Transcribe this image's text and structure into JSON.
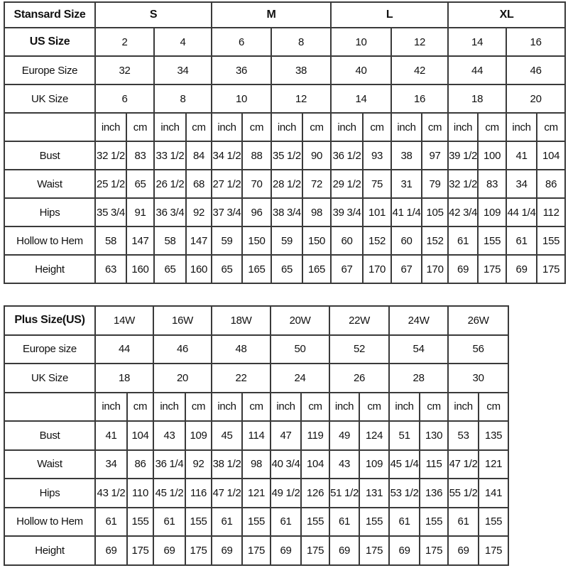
{
  "standard_table": {
    "header_label": "Stansard Size",
    "groups": [
      "S",
      "M",
      "L",
      "XL"
    ],
    "us_size": {
      "label": "US Size",
      "values": [
        "2",
        "4",
        "6",
        "8",
        "10",
        "12",
        "14",
        "16"
      ]
    },
    "europe_size": {
      "label": "Europe Size",
      "values": [
        "32",
        "34",
        "36",
        "38",
        "40",
        "42",
        "44",
        "46"
      ]
    },
    "uk_size": {
      "label": "UK Size",
      "values": [
        "6",
        "8",
        "10",
        "12",
        "14",
        "16",
        "18",
        "20"
      ]
    },
    "unit_labels": {
      "inch": "inch",
      "cm": "cm"
    },
    "measurements": [
      {
        "label": "Bust",
        "values": [
          "32 1/2",
          "83",
          "33 1/2",
          "84",
          "34 1/2",
          "88",
          "35 1/2",
          "90",
          "36 1/2",
          "93",
          "38",
          "97",
          "39 1/2",
          "100",
          "41",
          "104"
        ]
      },
      {
        "label": "Waist",
        "values": [
          "25 1/2",
          "65",
          "26 1/2",
          "68",
          "27 1/2",
          "70",
          "28 1/2",
          "72",
          "29 1/2",
          "75",
          "31",
          "79",
          "32 1/2",
          "83",
          "34",
          "86"
        ]
      },
      {
        "label": "Hips",
        "values": [
          "35 3/4",
          "91",
          "36 3/4",
          "92",
          "37 3/4",
          "96",
          "38 3/4",
          "98",
          "39 3/4",
          "101",
          "41 1/4",
          "105",
          "42 3/4",
          "109",
          "44 1/4",
          "112"
        ]
      },
      {
        "label": "Hollow to Hem",
        "values": [
          "58",
          "147",
          "58",
          "147",
          "59",
          "150",
          "59",
          "150",
          "60",
          "152",
          "60",
          "152",
          "61",
          "155",
          "61",
          "155"
        ]
      },
      {
        "label": "Height",
        "values": [
          "63",
          "160",
          "65",
          "160",
          "65",
          "165",
          "65",
          "165",
          "67",
          "170",
          "67",
          "170",
          "69",
          "175",
          "69",
          "175"
        ]
      }
    ]
  },
  "plus_table": {
    "header_label": "Plus Size(US)",
    "sizes": [
      "14W",
      "16W",
      "18W",
      "20W",
      "22W",
      "24W",
      "26W"
    ],
    "europe_size": {
      "label": "Europe size",
      "values": [
        "44",
        "46",
        "48",
        "50",
        "52",
        "54",
        "56"
      ]
    },
    "uk_size": {
      "label": "UK Size",
      "values": [
        "18",
        "20",
        "22",
        "24",
        "26",
        "28",
        "30"
      ]
    },
    "unit_labels": {
      "inch": "inch",
      "cm": "cm"
    },
    "measurements": [
      {
        "label": "Bust",
        "values": [
          "41",
          "104",
          "43",
          "109",
          "45",
          "114",
          "47",
          "119",
          "49",
          "124",
          "51",
          "130",
          "53",
          "135"
        ]
      },
      {
        "label": "Waist",
        "values": [
          "34",
          "86",
          "36 1/4",
          "92",
          "38 1/2",
          "98",
          "40 3/4",
          "104",
          "43",
          "109",
          "45 1/4",
          "115",
          "47 1/2",
          "121"
        ]
      },
      {
        "label": "Hips",
        "values": [
          "43 1/2",
          "110",
          "45 1/2",
          "116",
          "47 1/2",
          "121",
          "49 1/2",
          "126",
          "51 1/2",
          "131",
          "53 1/2",
          "136",
          "55 1/2",
          "141"
        ]
      },
      {
        "label": "Hollow to Hem",
        "values": [
          "61",
          "155",
          "61",
          "155",
          "61",
          "155",
          "61",
          "155",
          "61",
          "155",
          "61",
          "155",
          "61",
          "155"
        ]
      },
      {
        "label": "Height",
        "values": [
          "69",
          "175",
          "69",
          "175",
          "69",
          "175",
          "69",
          "175",
          "69",
          "175",
          "69",
          "175",
          "69",
          "175"
        ]
      }
    ]
  }
}
